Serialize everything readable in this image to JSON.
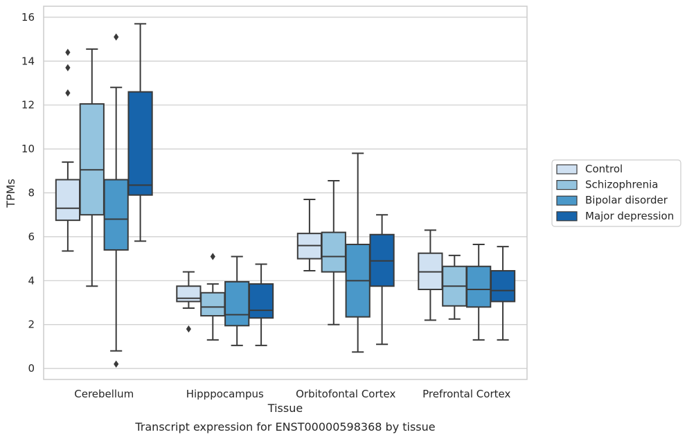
{
  "chart_data": {
    "type": "box",
    "title": "",
    "caption": "Transcript expression for ENST00000598368 by tissue",
    "xlabel": "Tissue",
    "ylabel": "TPMs",
    "ylim": [
      -0.5,
      16.5
    ],
    "yticks": [
      0,
      2,
      4,
      6,
      8,
      10,
      12,
      14,
      16
    ],
    "grid": true,
    "legend_position": "right",
    "categories": [
      "Cerebellum",
      "Hipppocampus",
      "Orbitofontal Cortex",
      "Prefrontal Cortex"
    ],
    "series": [
      {
        "name": "Control",
        "color": "#d0e1f2",
        "boxes": [
          {
            "whisker_low": 5.35,
            "q1": 6.75,
            "median": 7.3,
            "q3": 8.6,
            "whisker_high": 9.4,
            "outliers": [
              12.55,
              13.7,
              14.4
            ]
          },
          {
            "whisker_low": 2.75,
            "q1": 3.05,
            "median": 3.2,
            "q3": 3.75,
            "whisker_high": 4.4,
            "outliers": [
              1.8
            ]
          },
          {
            "whisker_low": 4.45,
            "q1": 5.0,
            "median": 5.6,
            "q3": 6.15,
            "whisker_high": 7.7,
            "outliers": []
          },
          {
            "whisker_low": 2.2,
            "q1": 3.6,
            "median": 4.4,
            "q3": 5.25,
            "whisker_high": 6.3,
            "outliers": []
          }
        ]
      },
      {
        "name": "Schizophrenia",
        "color": "#94c4df",
        "boxes": [
          {
            "whisker_low": 3.75,
            "q1": 7.0,
            "median": 9.05,
            "q3": 12.05,
            "whisker_high": 14.55,
            "outliers": []
          },
          {
            "whisker_low": 1.3,
            "q1": 2.4,
            "median": 2.8,
            "q3": 3.45,
            "whisker_high": 3.85,
            "outliers": [
              5.1
            ]
          },
          {
            "whisker_low": 2.0,
            "q1": 4.4,
            "median": 5.1,
            "q3": 6.2,
            "whisker_high": 8.55,
            "outliers": []
          },
          {
            "whisker_low": 2.25,
            "q1": 2.85,
            "median": 3.75,
            "q3": 4.65,
            "whisker_high": 5.15,
            "outliers": []
          }
        ]
      },
      {
        "name": "Bipolar disorder",
        "color": "#4a98c9",
        "boxes": [
          {
            "whisker_low": 0.8,
            "q1": 5.4,
            "median": 6.8,
            "q3": 8.6,
            "whisker_high": 12.8,
            "outliers": [
              0.2,
              15.1
            ]
          },
          {
            "whisker_low": 1.05,
            "q1": 1.95,
            "median": 2.45,
            "q3": 3.95,
            "whisker_high": 5.1,
            "outliers": []
          },
          {
            "whisker_low": 0.75,
            "q1": 2.35,
            "median": 4.0,
            "q3": 5.65,
            "whisker_high": 9.8,
            "outliers": []
          },
          {
            "whisker_low": 1.3,
            "q1": 2.8,
            "median": 3.6,
            "q3": 4.65,
            "whisker_high": 5.65,
            "outliers": []
          }
        ]
      },
      {
        "name": "Major depression",
        "color": "#1764ab",
        "boxes": [
          {
            "whisker_low": 5.8,
            "q1": 7.9,
            "median": 8.35,
            "q3": 12.6,
            "whisker_high": 15.7,
            "outliers": []
          },
          {
            "whisker_low": 1.05,
            "q1": 2.3,
            "median": 2.65,
            "q3": 3.85,
            "whisker_high": 4.75,
            "outliers": []
          },
          {
            "whisker_low": 1.1,
            "q1": 3.75,
            "median": 4.9,
            "q3": 6.1,
            "whisker_high": 7.0,
            "outliers": []
          },
          {
            "whisker_low": 1.3,
            "q1": 3.05,
            "median": 3.55,
            "q3": 4.45,
            "whisker_high": 5.55,
            "outliers": []
          }
        ]
      }
    ]
  }
}
